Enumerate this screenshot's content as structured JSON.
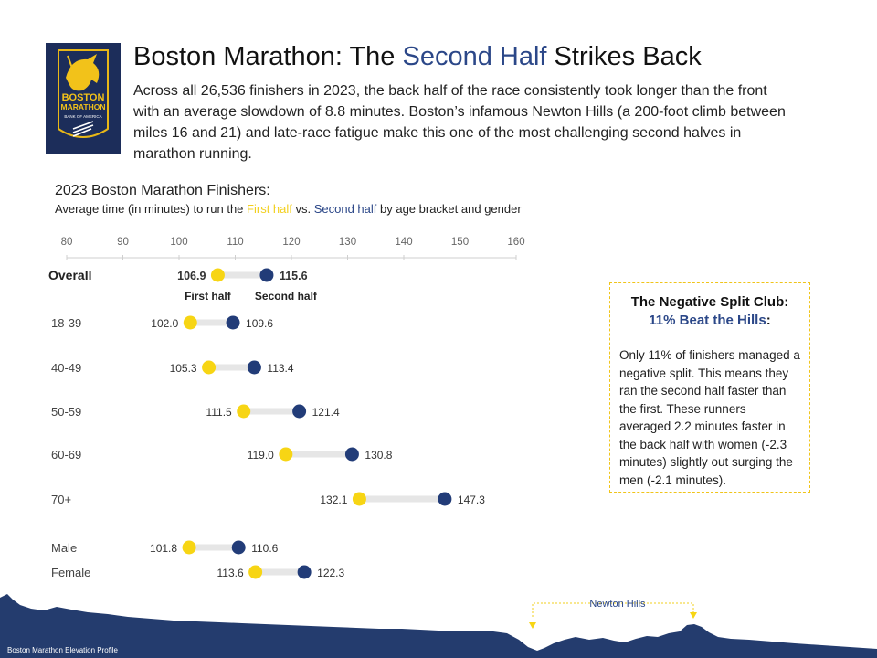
{
  "logo": {
    "line1": "BOSTON",
    "line2": "MARATHON",
    "sponsor": "BANK OF AMERICA"
  },
  "header": {
    "title_pre": "Boston Marathon: The ",
    "title_accent": "Second Half",
    "title_post": " Strikes Back",
    "description": "Across all 26,536 finishers in 2023, the back half of the race consistently took longer than the front with an average slowdown of 8.8 minutes. Boston’s infamous Newton Hills (a 200-foot climb between miles 16 and 21) and late-race fatigue make this one of the most challenging second halves in marathon running."
  },
  "subtitle": {
    "title": "2023 Boston Marathon Finishers:",
    "desc_pre": "Average time (in minutes) to run the ",
    "first_label": "First half",
    "desc_mid": " vs. ",
    "second_label": "Second half",
    "desc_post": " by age bracket and gender"
  },
  "colors": {
    "first": "#f7d514",
    "second": "#223c78",
    "connector": "#e6e6e6",
    "accent": "#2b4788",
    "callout_border": "#f0c419"
  },
  "chart_data": {
    "type": "dumbbell",
    "xlim": [
      80,
      160
    ],
    "ticks": [
      80,
      90,
      100,
      110,
      120,
      130,
      140,
      150,
      160
    ],
    "series": [
      {
        "name": "First half"
      },
      {
        "name": "Second half"
      }
    ],
    "rows": [
      {
        "label": "Overall",
        "first": 106.9,
        "second": 115.6,
        "first_text": "106.9",
        "second_text": "115.6",
        "bold": true,
        "first_tag": "First half",
        "second_tag": "Second half"
      },
      {
        "label": "18-39",
        "first": 102.0,
        "second": 109.6,
        "first_text": "102.0",
        "second_text": "109.6"
      },
      {
        "label": "40-49",
        "first": 105.3,
        "second": 113.4,
        "first_text": "105.3",
        "second_text": "113.4"
      },
      {
        "label": "50-59",
        "first": 111.5,
        "second": 121.4,
        "first_text": "111.5",
        "second_text": "121.4"
      },
      {
        "label": "60-69",
        "first": 119.0,
        "second": 130.8,
        "first_text": "119.0",
        "second_text": "130.8"
      },
      {
        "label": "70+",
        "first": 132.1,
        "second": 147.3,
        "first_text": "132.1",
        "second_text": "147.3"
      },
      {
        "label": "Male",
        "first": 101.8,
        "second": 110.6,
        "first_text": "101.8",
        "second_text": "110.6"
      },
      {
        "label": "Female",
        "first": 113.6,
        "second": 122.3,
        "first_text": "113.6",
        "second_text": "122.3"
      }
    ]
  },
  "callout": {
    "heading1": "The Negative Split Club:",
    "heading2": "11% Beat the Hills",
    "heading2_colon": ":",
    "body": "Only 11% of finishers managed a negative split. This means they ran the second half faster than the first. These runners averaged 2.2 minutes faster in the back half with women (-2.3 minutes) slightly out surging the men (-2.1 minutes)."
  },
  "elevation": {
    "caption": "Boston Marathon Elevation Profile",
    "hills_label": "Newton Hills"
  }
}
